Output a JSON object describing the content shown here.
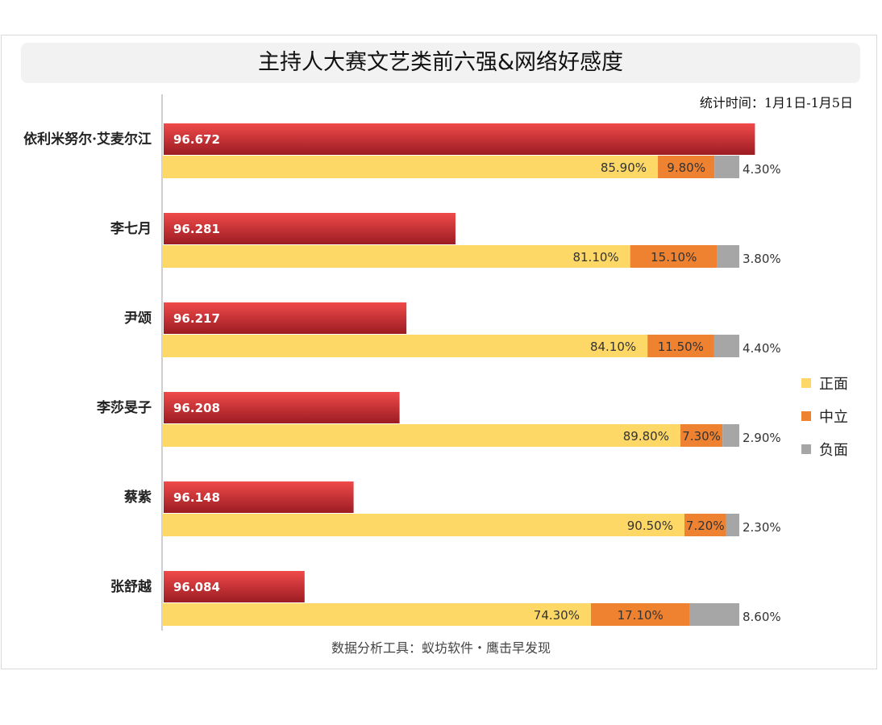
{
  "title": "主持人大赛文艺类前六强&网络好感度",
  "period": "统计时间：1月1日-1月5日",
  "source": "数据分析工具：蚁坊软件・鹰击早发现",
  "colors": {
    "score_bar_top": "#f04a4a",
    "score_bar_bottom": "#9b1c22",
    "positive": "#fdd866",
    "neutral": "#ee8230",
    "negative": "#a6a6a6",
    "axis": "#bfbfbf"
  },
  "legend": [
    {
      "label": "正面",
      "color": "#fdd866"
    },
    {
      "label": "中立",
      "color": "#ee8230"
    },
    {
      "label": "负面",
      "color": "#a6a6a6"
    }
  ],
  "chart_data": {
    "type": "bar",
    "orientation": "horizontal",
    "categories": [
      "依利米努尔·艾麦尔江",
      "李七月",
      "尹颂",
      "李莎旻子",
      "蔡紫",
      "张舒越"
    ],
    "score": {
      "values": [
        96.672,
        96.281,
        96.217,
        96.208,
        96.148,
        96.084
      ],
      "labels": [
        "96.672",
        "96.281",
        "96.217",
        "96.208",
        "96.148",
        "96.084"
      ],
      "xlim": [
        95.9,
        96.7
      ]
    },
    "sentiment": {
      "type": "stacked-bar",
      "series": [
        {
          "name": "正面",
          "values": [
            85.9,
            81.1,
            84.1,
            89.8,
            90.5,
            74.3
          ],
          "labels": [
            "85.90%",
            "81.10%",
            "84.10%",
            "89.80%",
            "90.50%",
            "74.30%"
          ]
        },
        {
          "name": "中立",
          "values": [
            9.8,
            15.1,
            11.5,
            7.3,
            7.2,
            17.1
          ],
          "labels": [
            "9.80%",
            "15.10%",
            "11.50%",
            "7.30%",
            "7.20%",
            "17.10%"
          ]
        },
        {
          "name": "负面",
          "values": [
            4.3,
            3.8,
            4.4,
            2.9,
            2.3,
            8.6
          ],
          "labels": [
            "4.30%",
            "3.80%",
            "4.40%",
            "2.90%",
            "2.30%",
            "8.60%"
          ]
        }
      ],
      "xlim": [
        0,
        100
      ]
    },
    "grid": false,
    "legend_position": "right"
  }
}
